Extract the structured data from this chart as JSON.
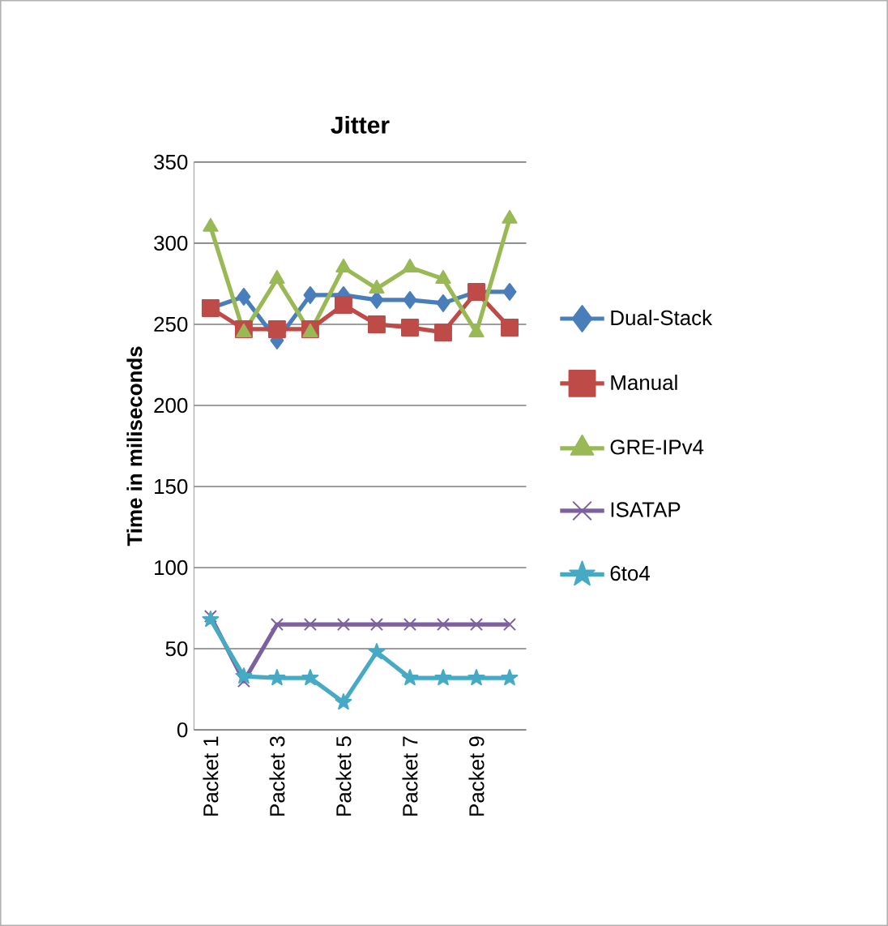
{
  "chart_data": {
    "type": "line",
    "title": "Jitter",
    "ylabel": "Time in miliseconds",
    "categories": [
      "Packet 1",
      null,
      "Packet 3",
      null,
      "Packet 5",
      null,
      "Packet 7",
      null,
      "Packet 9",
      null
    ],
    "ylim": [
      0,
      350
    ],
    "yticks": [
      0,
      50,
      100,
      150,
      200,
      250,
      300,
      350
    ],
    "grid": "y",
    "legend": "right",
    "series": [
      {
        "name": "Dual-Stack",
        "color": "#4a7ebb",
        "marker": "diamond",
        "values": [
          260,
          267,
          240,
          268,
          268,
          265,
          265,
          263,
          270,
          270
        ]
      },
      {
        "name": "Manual",
        "color": "#be4b48",
        "marker": "square",
        "values": [
          260,
          247,
          247,
          247,
          262,
          250,
          248,
          245,
          270,
          248
        ]
      },
      {
        "name": "GRE-IPv4",
        "color": "#98b954",
        "marker": "triangle",
        "values": [
          310,
          245,
          278,
          245,
          285,
          272,
          285,
          278,
          245,
          315
        ]
      },
      {
        "name": "ISATAP",
        "color": "#7d60a0",
        "marker": "cross",
        "values": [
          70,
          30,
          65,
          65,
          65,
          65,
          65,
          65,
          65,
          65
        ]
      },
      {
        "name": "6to4",
        "color": "#46aac5",
        "marker": "star",
        "values": [
          68,
          33,
          32,
          32,
          17,
          48,
          32,
          32,
          32,
          32
        ]
      }
    ]
  }
}
